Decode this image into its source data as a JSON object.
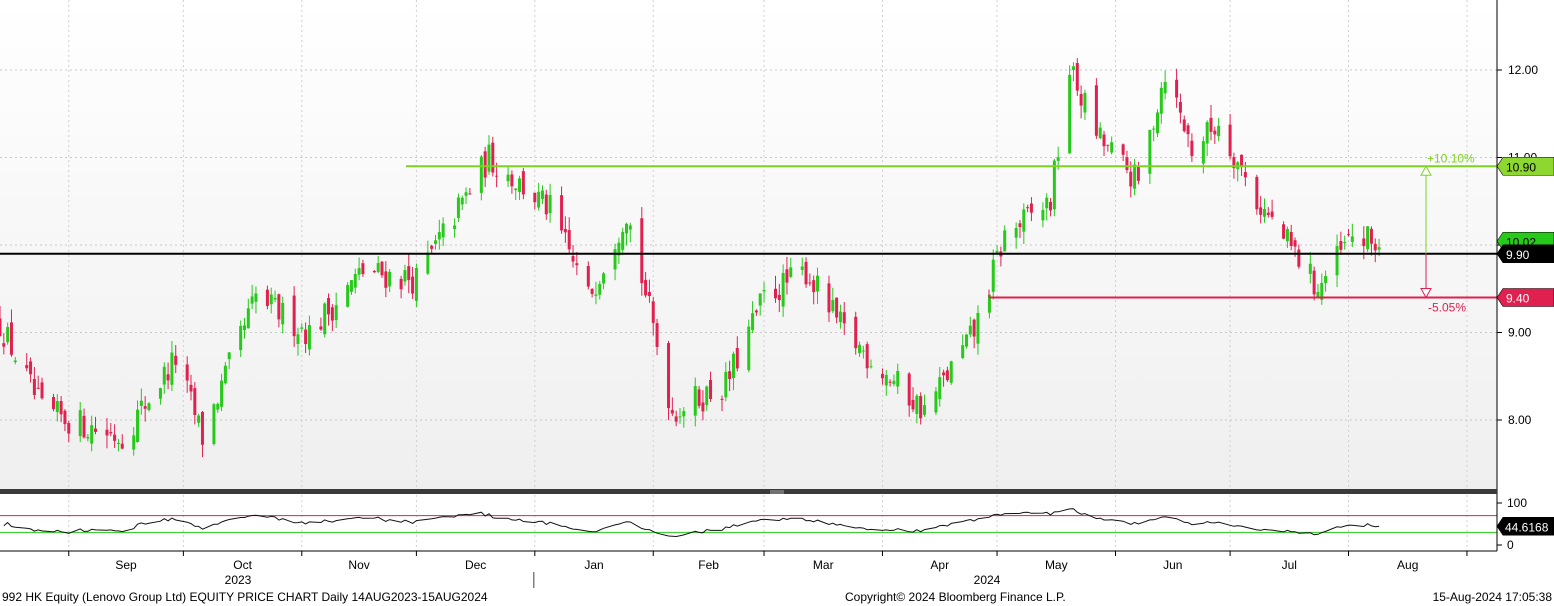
{
  "chart_data": {
    "type": "candlestick",
    "footer": {
      "left": "992 HK Equity (Lenovo Group Ltd) EQUITY PRICE CHART  Daily 14AUG2023-15AUG2024",
      "center": "Copyright© 2024 Bloomberg Finance L.P.",
      "right": "15-Aug-2024 17:05:38"
    },
    "price_axis": {
      "ylim": [
        7.2,
        12.8
      ],
      "ticks": [
        "8.00",
        "9.00",
        "10.00",
        "11.00",
        "12.00"
      ],
      "tick_values": [
        8,
        9,
        10,
        11,
        12
      ]
    },
    "x_axis": {
      "months": [
        "Sep",
        "Oct",
        "Nov",
        "Dec",
        "Jan",
        "Feb",
        "Mar",
        "Apr",
        "May",
        "Jun",
        "Jul",
        "Aug"
      ],
      "years": [
        "2023",
        "2024"
      ]
    },
    "levels": {
      "upper": {
        "label": "10.90",
        "value": 10.9,
        "change_label": "+10.10%",
        "color": "#7ed321"
      },
      "current": {
        "label": "9.90",
        "value": 9.9,
        "color": "#000000"
      },
      "lower": {
        "label": "9.40",
        "value": 9.4,
        "change_label": "-5.05%",
        "color": "#e0204f"
      },
      "last_price_tag": {
        "label": "10.02",
        "value": 10.02
      }
    },
    "price_path": [
      {
        "date": "2023-08-14",
        "close": 9.1
      },
      {
        "date": "2023-08-25",
        "close": 8.1
      },
      {
        "date": "2023-09-15",
        "close": 7.8
      },
      {
        "date": "2023-09-29",
        "close": 8.7
      },
      {
        "date": "2023-10-06",
        "close": 7.8
      },
      {
        "date": "2023-10-20",
        "close": 9.4
      },
      {
        "date": "2023-11-03",
        "close": 9.0
      },
      {
        "date": "2023-11-17",
        "close": 9.7
      },
      {
        "date": "2023-12-01",
        "close": 9.6
      },
      {
        "date": "2023-12-20",
        "close": 11.0
      },
      {
        "date": "2024-01-05",
        "close": 10.4
      },
      {
        "date": "2024-01-15",
        "close": 9.4
      },
      {
        "date": "2024-01-25",
        "close": 10.4
      },
      {
        "date": "2024-02-06",
        "close": 8.1
      },
      {
        "date": "2024-02-20",
        "close": 8.4
      },
      {
        "date": "2024-03-01",
        "close": 9.4
      },
      {
        "date": "2024-03-12",
        "close": 9.7
      },
      {
        "date": "2024-03-22",
        "close": 9.0
      },
      {
        "date": "2024-04-12",
        "close": 8.1
      },
      {
        "date": "2024-04-25",
        "close": 9.0
      },
      {
        "date": "2024-05-03",
        "close": 10.1
      },
      {
        "date": "2024-05-15",
        "close": 10.5
      },
      {
        "date": "2024-05-20",
        "close": 12.0
      },
      {
        "date": "2024-05-28",
        "close": 11.2
      },
      {
        "date": "2024-06-07",
        "close": 10.7
      },
      {
        "date": "2024-06-14",
        "close": 12.0
      },
      {
        "date": "2024-06-21",
        "close": 11.1
      },
      {
        "date": "2024-06-28",
        "close": 11.4
      },
      {
        "date": "2024-07-08",
        "close": 10.5
      },
      {
        "date": "2024-07-18",
        "close": 9.9
      },
      {
        "date": "2024-07-24",
        "close": 9.5
      },
      {
        "date": "2024-08-02",
        "close": 10.1
      },
      {
        "date": "2024-08-09",
        "close": 10.0
      }
    ],
    "indicator": {
      "ylim": [
        0,
        100
      ],
      "ticks": [
        "100",
        "0"
      ],
      "tick_values": [
        100,
        0
      ],
      "last_value": "44.6168",
      "upper_band": 70,
      "lower_band": 30
    },
    "colors": {
      "up": "#27c91b",
      "down": "#e0204f",
      "panel_top": "#ffffff",
      "panel_bottom": "#f0f0f0"
    }
  }
}
